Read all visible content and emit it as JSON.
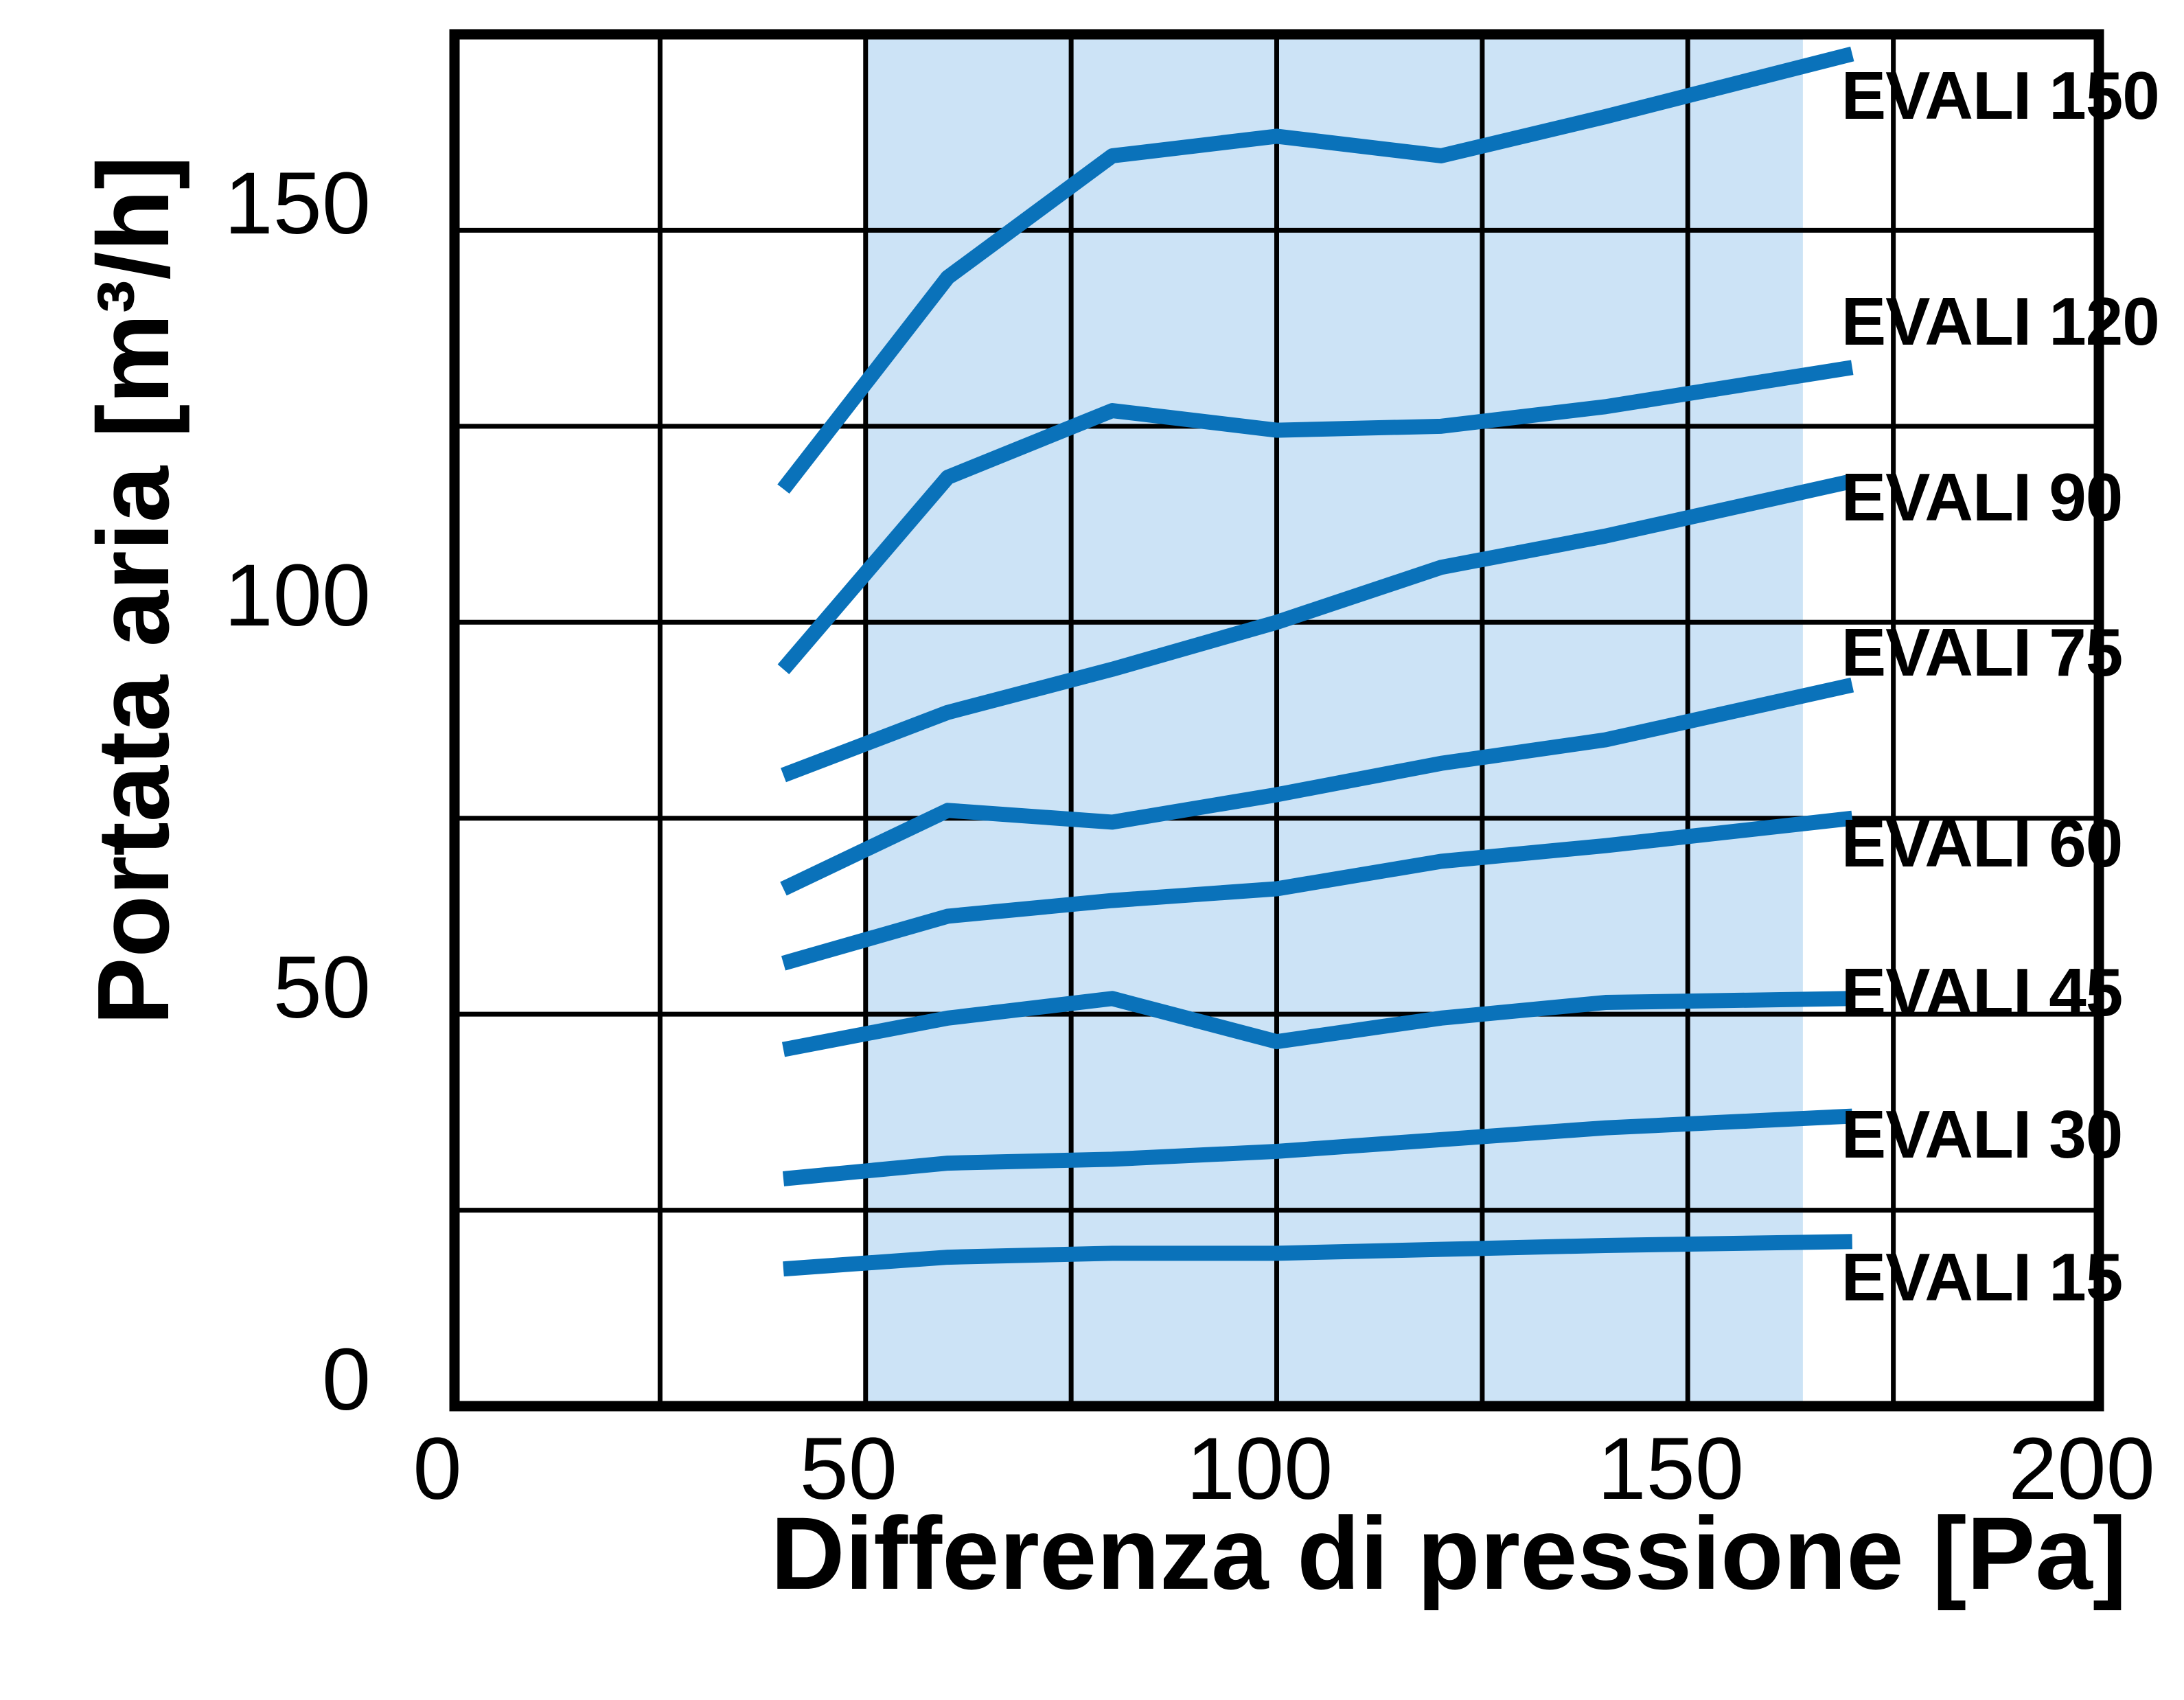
{
  "chart_data": {
    "type": "line",
    "title": "",
    "xlabel": "Differenza di pressione [Pa]",
    "ylabel": "Portata aria [m³/h]",
    "xlim": [
      0,
      200
    ],
    "ylim": [
      0,
      175
    ],
    "xticks": [
      0,
      50,
      100,
      150,
      200
    ],
    "yticks": [
      0,
      50,
      100,
      150
    ],
    "grid": true,
    "grid_step_x_pa": 25,
    "grid_step_y_m3h": 25,
    "x": [
      40,
      60,
      80,
      100,
      120,
      140,
      170
    ],
    "series": [
      {
        "name": "EVALI 150",
        "values": [
          117,
          144,
          159.5,
          162,
          159.5,
          164.5,
          172.5
        ],
        "label_at": 167.2
      },
      {
        "name": "EVALI 120",
        "values": [
          94,
          118.5,
          127,
          124.5,
          125,
          127.5,
          132.5
        ],
        "label_at": 138.4
      },
      {
        "name": "EVALI 90",
        "values": [
          80.5,
          88.5,
          94,
          100,
          107,
          111,
          118
        ],
        "label_at": 116.0
      },
      {
        "name": "EVALI 75",
        "values": [
          66,
          76,
          74.5,
          78,
          82,
          85,
          92
        ],
        "label_at": 96.2
      },
      {
        "name": "EVALI 60",
        "values": [
          56.5,
          62.5,
          64.5,
          66,
          69.5,
          71.5,
          75
        ],
        "label_at": 71.8
      },
      {
        "name": "EVALI 45",
        "values": [
          45.5,
          49.5,
          52,
          46.5,
          49.5,
          51.5,
          52
        ],
        "label_at": 52.8
      },
      {
        "name": "EVALI 30",
        "values": [
          29,
          31,
          31.5,
          32.5,
          34,
          35.5,
          37
        ],
        "label_at": 34.7
      },
      {
        "name": "EVALI 15",
        "values": [
          17.5,
          19,
          19.5,
          19.5,
          20,
          20.5,
          21
        ],
        "label_at": 16.5
      }
    ],
    "highlight_band": {
      "x_from_pa": 50,
      "x_to_pa": 164
    },
    "legend_position": "right-of-curve-ends",
    "colors": {
      "line": "#0a72ba",
      "band": "#cce3f6",
      "grid": "#000000",
      "frame": "#000000",
      "text": "#000000",
      "background": "#ffffff"
    }
  }
}
